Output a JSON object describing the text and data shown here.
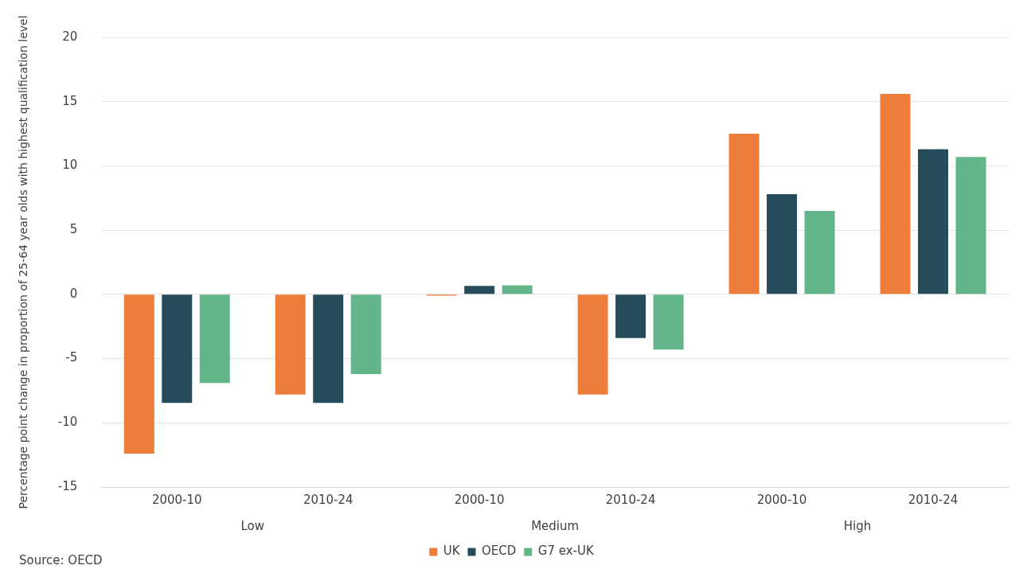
{
  "chart_data": {
    "type": "bar",
    "ylabel": "Percentage point change in proportion of 25-64 year olds with highest qualification level",
    "categories": [
      "2000-10",
      "2010-24",
      "2000-10",
      "2010-24",
      "2000-10",
      "2010-24"
    ],
    "series": [
      {
        "name": "UK",
        "color": "#ed7d3a",
        "values": [
          -12.4,
          -7.8,
          -0.1,
          -7.8,
          12.5,
          15.6
        ]
      },
      {
        "name": "OECD",
        "color": "#264b5a",
        "values": [
          -8.45,
          -8.45,
          0.65,
          -3.4,
          7.8,
          11.3
        ]
      },
      {
        "name": "G7 ex-UK",
        "color": "#63b58a",
        "values": [
          -6.9,
          -6.2,
          0.7,
          -4.3,
          6.5,
          10.7
        ]
      }
    ],
    "ylim": [
      -15,
      20
    ],
    "yticks": [
      -15,
      -10,
      -5,
      0,
      5,
      10,
      15,
      20
    ],
    "grid": "y",
    "legend": "bottom",
    "annotations": [
      "Low",
      "Medium",
      "High",
      "Source: OECD"
    ]
  }
}
